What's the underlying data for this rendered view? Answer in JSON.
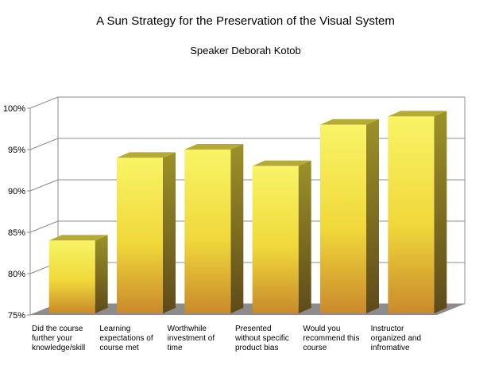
{
  "chart_data": {
    "type": "bar",
    "title": "A Sun Strategy for the Preservation of the Visual System",
    "subtitle": "Speaker Deborah Kotob",
    "categories": [
      "Did the course further your knowledge/skill",
      "Learning expectations of course met",
      "Worthwhile investment of time",
      "Presented without specific product bias",
      "Would you recommend this course",
      "Instructor organized and infromative"
    ],
    "category_lines": [
      [
        "Did the course",
        "further your",
        "knowledge/skill"
      ],
      [
        "Learning",
        "expectations of",
        "course met"
      ],
      [
        "Worthwhile",
        "investment of",
        "time"
      ],
      [
        "Presented",
        "without specific",
        "product bias"
      ],
      [
        "Would you",
        "recommend this",
        "course"
      ],
      [
        "Instructor",
        "organized and",
        "infromative"
      ]
    ],
    "values": [
      84,
      94,
      95,
      93,
      98,
      99
    ],
    "ylim": [
      75,
      100
    ],
    "yticks": [
      75,
      80,
      85,
      90,
      95,
      100
    ],
    "ytick_labels": [
      "75%",
      "80%",
      "85%",
      "90%",
      "95%",
      "100%"
    ],
    "xlabel": "",
    "ylabel": "",
    "grid": true,
    "legend": "none",
    "colors": {
      "bar_top": "#f5f05a",
      "bar_bottom": "#c8862a",
      "bar_side": "#8a7a20",
      "grid": "#8c8c8c",
      "floor": "#8c8c8c"
    }
  }
}
